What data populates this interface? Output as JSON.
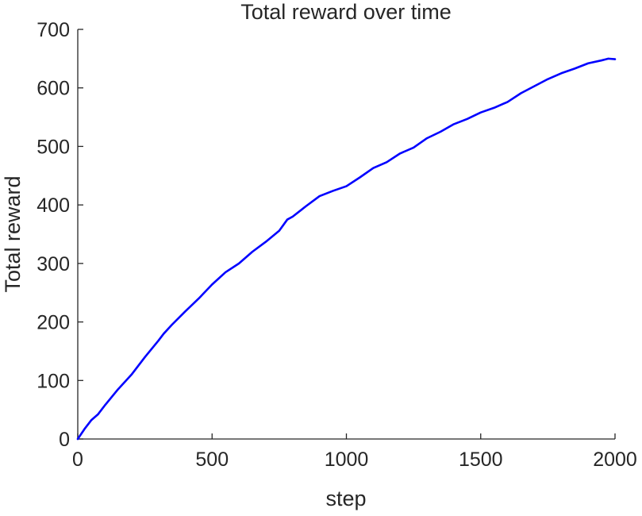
{
  "chart_data": {
    "type": "line",
    "title": "Total reward over time",
    "xlabel": "step",
    "ylabel": "Total reward",
    "xlim": [
      0,
      2000
    ],
    "ylim": [
      0,
      700
    ],
    "xticks": [
      0,
      500,
      1000,
      1500,
      2000
    ],
    "yticks": [
      0,
      100,
      200,
      300,
      400,
      500,
      600,
      700
    ],
    "xtick_labels": [
      "0",
      "500",
      "1000",
      "1500",
      "2000"
    ],
    "ytick_labels": [
      "0",
      "100",
      "200",
      "300",
      "400",
      "500",
      "600",
      "700"
    ],
    "grid": false,
    "legend": false,
    "series": [
      {
        "color": "#0000ff",
        "x": [
          0,
          25,
          50,
          75,
          100,
          150,
          200,
          250,
          300,
          320,
          350,
          400,
          450,
          500,
          550,
          600,
          650,
          700,
          750,
          780,
          800,
          850,
          900,
          950,
          1000,
          1050,
          1100,
          1150,
          1200,
          1250,
          1300,
          1350,
          1400,
          1450,
          1500,
          1550,
          1600,
          1650,
          1700,
          1750,
          1800,
          1850,
          1900,
          1950,
          1975,
          2000
        ],
        "y": [
          0,
          17,
          32,
          42,
          57,
          85,
          110,
          140,
          168,
          180,
          195,
          218,
          240,
          264,
          285,
          300,
          320,
          337,
          356,
          375,
          380,
          398,
          415,
          424,
          432,
          447,
          463,
          473,
          488,
          498,
          514,
          525,
          538,
          547,
          558,
          566,
          576,
          591,
          603,
          615,
          625,
          633,
          642,
          647,
          650,
          649
        ]
      }
    ]
  }
}
